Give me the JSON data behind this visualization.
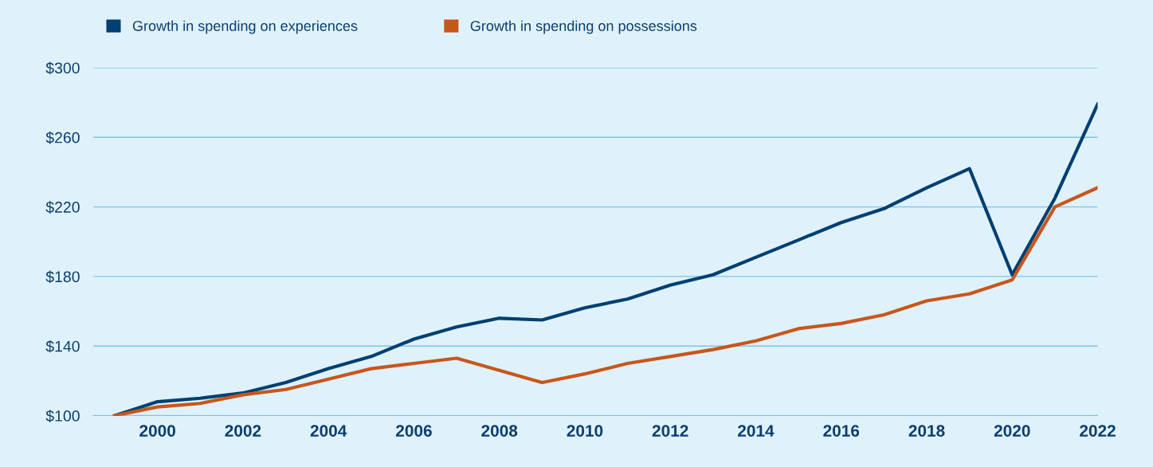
{
  "chart_data": {
    "type": "line",
    "x": [
      1999,
      2000,
      2001,
      2002,
      2003,
      2004,
      2005,
      2006,
      2007,
      2008,
      2009,
      2010,
      2011,
      2012,
      2013,
      2014,
      2015,
      2016,
      2017,
      2018,
      2019,
      2020,
      2021,
      2022
    ],
    "series": [
      {
        "name": "Growth in spending on experiences",
        "color": "#003f72",
        "values": [
          100,
          108,
          110,
          113,
          119,
          127,
          134,
          144,
          151,
          156,
          155,
          162,
          167,
          175,
          181,
          191,
          201,
          211,
          219,
          231,
          242,
          181,
          225,
          279
        ]
      },
      {
        "name": "Growth in spending on possessions",
        "color": "#c8561c",
        "values": [
          100,
          105,
          107,
          112,
          115,
          121,
          127,
          130,
          133,
          126,
          119,
          124,
          130,
          134,
          138,
          143,
          150,
          153,
          158,
          166,
          170,
          178,
          220,
          231
        ]
      }
    ],
    "xlim": [
      1998.5,
      2022
    ],
    "xticks": [
      2000,
      2002,
      2004,
      2006,
      2008,
      2010,
      2012,
      2014,
      2016,
      2018,
      2020,
      2022
    ],
    "ylim": [
      100,
      300
    ],
    "yticks": [
      {
        "value": 100,
        "label": "$100"
      },
      {
        "value": 140,
        "label": "$140"
      },
      {
        "value": 180,
        "label": "$180"
      },
      {
        "value": 220,
        "label": "$220"
      },
      {
        "value": 260,
        "label": "$260"
      },
      {
        "value": 300,
        "label": "$300"
      }
    ],
    "grid": "y",
    "legend": "top left",
    "line_style": "solid",
    "marker": "none"
  }
}
